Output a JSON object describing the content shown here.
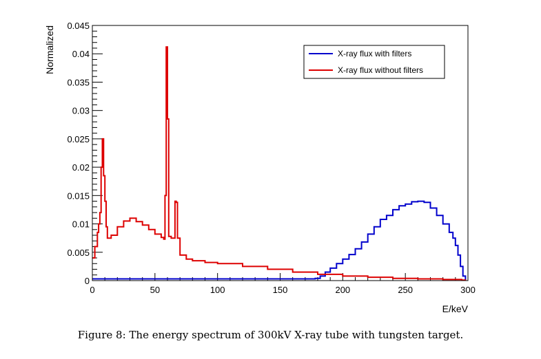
{
  "chart_data": {
    "type": "line",
    "xlabel": "E/keV",
    "ylabel": "Normalized",
    "xlim": [
      0,
      300
    ],
    "ylim": [
      0,
      0.045
    ],
    "xticks": [
      0,
      50,
      100,
      150,
      200,
      250,
      300
    ],
    "yticks": [
      0,
      0.005,
      0.01,
      0.015,
      0.02,
      0.025,
      0.03,
      0.035,
      0.04,
      0.045
    ],
    "xtick_labels": [
      "0",
      "50",
      "100",
      "150",
      "200",
      "250",
      "300"
    ],
    "ytick_labels": [
      "0",
      "0.005",
      "0.01",
      "0.015",
      "0.02",
      "0.025",
      "0.03",
      "0.035",
      "0.04",
      "0.045"
    ],
    "grid": false,
    "legend_position": "top-right",
    "series": [
      {
        "name": "X-ray flux with filters",
        "color": "#0000cc",
        "style": "step",
        "points": [
          [
            0,
            0.0003
          ],
          [
            10,
            0.0003
          ],
          [
            40,
            0.0003
          ],
          [
            80,
            0.0003
          ],
          [
            120,
            0.0003
          ],
          [
            150,
            0.0003
          ],
          [
            170,
            0.0003
          ],
          [
            178,
            0.0004
          ],
          [
            182,
            0.0008
          ],
          [
            186,
            0.0015
          ],
          [
            190,
            0.0022
          ],
          [
            195,
            0.003
          ],
          [
            200,
            0.0038
          ],
          [
            205,
            0.0046
          ],
          [
            210,
            0.0056
          ],
          [
            215,
            0.0068
          ],
          [
            220,
            0.0082
          ],
          [
            225,
            0.0095
          ],
          [
            230,
            0.0108
          ],
          [
            235,
            0.0115
          ],
          [
            240,
            0.0125
          ],
          [
            245,
            0.0132
          ],
          [
            250,
            0.0135
          ],
          [
            255,
            0.0139
          ],
          [
            260,
            0.014
          ],
          [
            265,
            0.0138
          ],
          [
            270,
            0.0128
          ],
          [
            275,
            0.0115
          ],
          [
            280,
            0.01
          ],
          [
            285,
            0.0085
          ],
          [
            288,
            0.0075
          ],
          [
            290,
            0.0062
          ],
          [
            292,
            0.0045
          ],
          [
            294,
            0.0025
          ],
          [
            296,
            0.0008
          ],
          [
            298,
            0.0
          ]
        ]
      },
      {
        "name": "X-ray flux without filters",
        "color": "#dd0000",
        "style": "step",
        "points": [
          [
            0,
            0.004
          ],
          [
            2,
            0.006
          ],
          [
            4,
            0.0085
          ],
          [
            5,
            0.01
          ],
          [
            6,
            0.012
          ],
          [
            7,
            0.02
          ],
          [
            8,
            0.025
          ],
          [
            9,
            0.0185
          ],
          [
            10,
            0.014
          ],
          [
            11,
            0.0095
          ],
          [
            12,
            0.0075
          ],
          [
            15,
            0.008
          ],
          [
            20,
            0.0095
          ],
          [
            25,
            0.0105
          ],
          [
            30,
            0.011
          ],
          [
            35,
            0.0104
          ],
          [
            40,
            0.0098
          ],
          [
            45,
            0.009
          ],
          [
            50,
            0.0082
          ],
          [
            55,
            0.0076
          ],
          [
            57,
            0.0073
          ],
          [
            58,
            0.015
          ],
          [
            59,
            0.0412
          ],
          [
            60,
            0.0285
          ],
          [
            61,
            0.0078
          ],
          [
            63,
            0.0075
          ],
          [
            65,
            0.0075
          ],
          [
            66,
            0.014
          ],
          [
            67,
            0.0138
          ],
          [
            68,
            0.0075
          ],
          [
            70,
            0.0045
          ],
          [
            75,
            0.0038
          ],
          [
            80,
            0.0035
          ],
          [
            90,
            0.0032
          ],
          [
            100,
            0.003
          ],
          [
            120,
            0.0025
          ],
          [
            140,
            0.002
          ],
          [
            160,
            0.0015
          ],
          [
            180,
            0.0011
          ],
          [
            200,
            0.0008
          ],
          [
            220,
            0.0006
          ],
          [
            240,
            0.0004
          ],
          [
            260,
            0.0003
          ],
          [
            280,
            0.0002
          ],
          [
            295,
            0.0001
          ],
          [
            298,
            0.0
          ]
        ]
      }
    ]
  },
  "caption": "Figure 8: The energy spectrum of 300kV X-ray tube with tungsten target."
}
